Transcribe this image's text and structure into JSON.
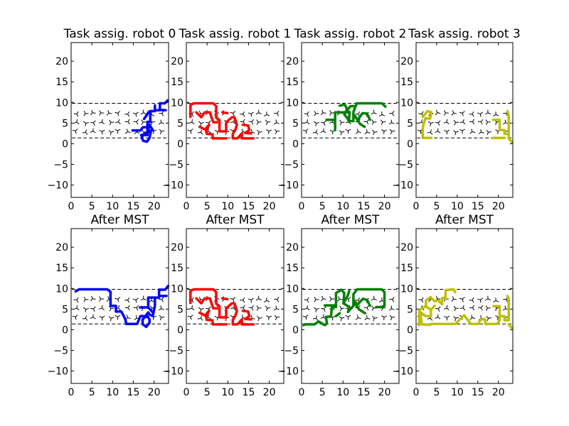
{
  "figure": {
    "background": "#ffffff"
  },
  "chart_data": [
    {
      "type": "line",
      "title": "Task assig. robot 0",
      "xlim": [
        0,
        23.5
      ],
      "ylim": [
        -13,
        24.5
      ],
      "xticks": [
        0,
        5,
        10,
        15,
        20
      ],
      "yticks": [
        -10,
        -5,
        0,
        5,
        10,
        15,
        20
      ],
      "grid": false,
      "color": "#0000ff",
      "series": [
        {
          "x": [
            14.8,
            16.7,
            17.3,
            18.7,
            18.7,
            17.5,
            17,
            17.4,
            18.3,
            18.9,
            19.3,
            19.7,
            18.9
          ],
          "y": [
            3.2,
            3.2,
            4,
            4,
            2.8,
            2.3,
            1.5,
            0.7,
            0.5,
            1.4,
            3.2,
            3.3,
            4.6
          ]
        },
        {
          "x": [
            16.9,
            18.4,
            18.4,
            19.1,
            19.1,
            20.2,
            20.2
          ],
          "y": [
            2.1,
            2.1,
            5.3,
            5.3,
            7.9,
            7.9,
            9.3
          ]
        },
        {
          "x": [
            20.2,
            21.4,
            21.4,
            22.6,
            23.3
          ],
          "y": [
            8.1,
            8.1,
            9.8,
            9.8,
            10.5
          ]
        },
        {
          "x": [
            17.6,
            18.8
          ],
          "y": [
            6.0,
            7.8
          ]
        },
        {
          "x": [
            21.4,
            22.8
          ],
          "y": [
            8.2,
            8.1
          ]
        }
      ]
    },
    {
      "type": "line",
      "title": "Task assig. robot 1",
      "xlim": [
        0,
        23.5
      ],
      "ylim": [
        -13,
        24.5
      ],
      "xticks": [
        0,
        5,
        10,
        15,
        20
      ],
      "yticks": [
        -10,
        -5,
        0,
        5,
        10,
        15,
        20
      ],
      "grid": false,
      "color": "#ff0000",
      "series": [
        {
          "x": [
            1,
            1,
            1.8,
            6.5,
            7.2,
            7.2,
            8,
            8,
            9.6,
            9.6,
            11,
            11.6,
            12.2,
            11.8,
            11.2,
            11.2,
            12.3,
            13.4,
            13.4,
            16.2
          ],
          "y": [
            6.5,
            9.4,
            9.8,
            9.8,
            9.1,
            6.3,
            5.7,
            3,
            3,
            5.2,
            6.4,
            6.4,
            4.6,
            3.3,
            2.4,
            1.3,
            1.3,
            2.5,
            1.3,
            1.3
          ]
        },
        {
          "x": [
            2.4,
            3.6,
            4.4,
            5.7,
            6.1,
            6.5,
            7.3
          ],
          "y": [
            7.6,
            6.4,
            7.6,
            7.6,
            6.3,
            5.2,
            5.2
          ]
        },
        {
          "x": [
            3.2,
            4.8,
            5.5,
            4.7,
            4.9,
            6.3,
            6.4,
            7.8,
            9.6
          ],
          "y": [
            4.1,
            3.3,
            4.6,
            3.7,
            2.4,
            2.3,
            1.3,
            1.3,
            1.3
          ]
        },
        {
          "x": [
            13.6,
            14.9,
            15.2,
            14.2,
            15.6
          ],
          "y": [
            4.6,
            4.4,
            3.3,
            2.6,
            2.5
          ]
        },
        {
          "x": [
            8.7,
            9.9
          ],
          "y": [
            7.6,
            7.4
          ]
        }
      ]
    },
    {
      "type": "line",
      "title": "Task assig. robot 2",
      "xlim": [
        0,
        23.5
      ],
      "ylim": [
        -13,
        24.5
      ],
      "xticks": [
        0,
        5,
        10,
        15,
        20
      ],
      "yticks": [
        -10,
        -5,
        0,
        5,
        10,
        15,
        20
      ],
      "grid": false,
      "color": "#008000",
      "series": [
        {
          "x": [
            10.8,
            11.6,
            11.4,
            12.5,
            12.5,
            13.3,
            14.4,
            16.2,
            17.9,
            19.4,
            20.2
          ],
          "y": [
            8.2,
            7.6,
            5.5,
            5.5,
            7.7,
            9.8,
            9.8,
            9.8,
            9.8,
            9.8,
            9
          ]
        },
        {
          "x": [
            6,
            8.1,
            8.1,
            10.5,
            11.3,
            11.8,
            12.7
          ],
          "y": [
            5.8,
            5.8,
            7.6,
            7.6,
            8.5,
            9.1,
            9.1
          ]
        },
        {
          "x": [
            9.2,
            10.4,
            11.1,
            10.3,
            11,
            11.5
          ],
          "y": [
            9.2,
            9.5,
            8.2,
            7.1,
            6.3,
            5.3
          ]
        },
        {
          "x": [
            13.5,
            14.7,
            15.8,
            16.5
          ],
          "y": [
            5.7,
            7.4,
            7.3,
            5.8
          ]
        },
        {
          "x": [
            12.9,
            14.1,
            15.2
          ],
          "y": [
            6.7,
            4.8,
            4.1
          ]
        },
        {
          "x": [
            8.1,
            8.1
          ],
          "y": [
            5.8,
            3.3
          ]
        }
      ]
    },
    {
      "type": "line",
      "title": "Task assig. robot 3",
      "xlim": [
        0,
        23.5
      ],
      "ylim": [
        -13,
        24.5
      ],
      "xticks": [
        0,
        5,
        10,
        15,
        20
      ],
      "yticks": [
        -10,
        -5,
        0,
        5,
        10,
        15,
        20
      ],
      "grid": false,
      "color": "#bfbf00",
      "series": [
        {
          "x": [
            1.6,
            2.8,
            3.7,
            3.4,
            2.3,
            1.8,
            1.6,
            1.6,
            3.7
          ],
          "y": [
            6.5,
            7.9,
            7.6,
            6.1,
            6.2,
            4.7,
            3.6,
            1.4,
            1.4
          ]
        },
        {
          "x": [
            18.7,
            20.3,
            20.3,
            21.5,
            21.5,
            22.5,
            22.5,
            23.3
          ],
          "y": [
            5.8,
            5.8,
            3.3,
            3.3,
            2.4,
            2.3,
            1.3,
            0.4
          ]
        },
        {
          "x": [
            18.8,
            21.5
          ],
          "y": [
            1.4,
            1.4
          ]
        },
        {
          "x": [
            22.5,
            22.5,
            22.2
          ],
          "y": [
            2.3,
            6.8,
            7.9
          ]
        }
      ]
    },
    {
      "type": "line",
      "title": "After MST",
      "xlim": [
        0,
        23.5
      ],
      "ylim": [
        -13,
        24.5
      ],
      "xticks": [
        0,
        5,
        10,
        15,
        20
      ],
      "yticks": [
        -10,
        -5,
        0,
        5,
        10,
        15,
        20
      ],
      "grid": false,
      "color": "#0000ff",
      "series": [
        {
          "x": [
            1.1,
            1.9,
            8.7,
            9.5,
            9.5,
            10.8,
            10.8,
            12.1,
            12.7,
            13.1,
            13.3,
            13.8,
            15.9,
            16.3,
            16.7,
            18.4,
            18.9,
            18.9,
            18.1,
            17.3,
            17.2,
            17.9,
            18.6,
            18.9,
            19.7,
            20.2,
            20.2,
            21.2,
            21.2,
            22.7,
            23.4
          ],
          "y": [
            9.3,
            9.8,
            9.8,
            9.2,
            5.8,
            5.8,
            4.4,
            4.4,
            3.3,
            2.4,
            1.4,
            1.4,
            1.4,
            2.3,
            3.3,
            3.3,
            2.5,
            1.7,
            0.7,
            1.3,
            2.4,
            3.3,
            4.2,
            3.7,
            3.3,
            5.8,
            7.8,
            7.8,
            9.7,
            9.7,
            10.6
          ]
        },
        {
          "x": [
            16.6,
            18.6,
            18.6,
            20.2
          ],
          "y": [
            5.4,
            5.4,
            7.8,
            7.8
          ]
        },
        {
          "x": [
            18.6,
            19.7
          ],
          "y": [
            5.4,
            4.2
          ]
        },
        {
          "x": [
            21.2,
            23
          ],
          "y": [
            8.2,
            8.2
          ]
        }
      ]
    },
    {
      "type": "line",
      "title": "After MST",
      "xlim": [
        0,
        23.5
      ],
      "ylim": [
        -13,
        24.5
      ],
      "xticks": [
        0,
        5,
        10,
        15,
        20
      ],
      "yticks": [
        -10,
        -5,
        0,
        5,
        10,
        15,
        20
      ],
      "grid": false,
      "color": "#ff0000",
      "series": [
        {
          "x": [
            1,
            1,
            1.8,
            6.5,
            7.2,
            7.2,
            8,
            8,
            9.6,
            9.6,
            11,
            11.6,
            12.2,
            11.8,
            11.2,
            11.2,
            12.3,
            13.4,
            13.4,
            16.2
          ],
          "y": [
            6.5,
            9.4,
            9.8,
            9.8,
            9.1,
            6.3,
            5.7,
            3,
            3,
            5.2,
            6.4,
            6.4,
            4.6,
            3.3,
            2.4,
            1.3,
            1.3,
            2.5,
            1.3,
            1.3
          ]
        },
        {
          "x": [
            2.4,
            3.6,
            4.4,
            5.7,
            6.1,
            6.5,
            7.3
          ],
          "y": [
            7.6,
            6.4,
            7.6,
            7.6,
            6.3,
            5.2,
            5.2
          ]
        },
        {
          "x": [
            3.2,
            4.8,
            5.5,
            4.7,
            4.9,
            6.3,
            6.4,
            7.8,
            9.6
          ],
          "y": [
            4.1,
            3.3,
            4.6,
            3.7,
            2.4,
            2.3,
            1.3,
            1.3,
            1.3
          ]
        },
        {
          "x": [
            13.6,
            14.9,
            15.2,
            14.2,
            15.6
          ],
          "y": [
            4.6,
            4.4,
            3.3,
            2.6,
            2.5
          ]
        },
        {
          "x": [
            8.7,
            9.9
          ],
          "y": [
            7.6,
            7.4
          ]
        }
      ]
    },
    {
      "type": "line",
      "title": "After MST",
      "xlim": [
        0,
        23.5
      ],
      "ylim": [
        -13,
        24.5
      ],
      "xticks": [
        0,
        5,
        10,
        15,
        20
      ],
      "yticks": [
        -10,
        -5,
        0,
        5,
        10,
        15,
        20
      ],
      "grid": false,
      "color": "#008000",
      "series": [
        {
          "x": [
            0.5,
            0.8,
            3.1,
            4.1,
            5.6,
            6.1,
            5.9,
            7.1,
            7.3,
            8.3,
            8.3,
            9.6,
            10.3,
            10.1,
            11.5,
            11.2,
            12.5,
            12.5,
            13.4,
            16.3,
            19.3,
            20,
            20,
            19.2,
            18
          ],
          "y": [
            1.1,
            1.3,
            1.3,
            2,
            1.1,
            1.5,
            3.1,
            3.2,
            5.5,
            5.5,
            8.9,
            9.7,
            8.9,
            6.4,
            5.5,
            4.3,
            5.8,
            8.6,
            9.8,
            9.8,
            9.8,
            9.1,
            5.8,
            5.5,
            5.5
          ]
        },
        {
          "x": [
            5.6,
            8.3
          ],
          "y": [
            5.9,
            5.9
          ]
        },
        {
          "x": [
            10.1,
            11.1,
            11.5
          ],
          "y": [
            6.4,
            8.2,
            9.4
          ]
        },
        {
          "x": [
            12.5,
            13.5,
            14.8,
            15.8,
            16.5
          ],
          "y": [
            7.2,
            6.1,
            7.5,
            7.2,
            5.8
          ]
        },
        {
          "x": [
            12.6,
            13.9,
            15.3
          ],
          "y": [
            6.6,
            4.9,
            4.0
          ]
        },
        {
          "x": [
            8.3,
            9.2
          ],
          "y": [
            3.3,
            4.0
          ]
        }
      ]
    },
    {
      "type": "line",
      "title": "After MST",
      "xlim": [
        0,
        23.5
      ],
      "ylim": [
        -13,
        24.5
      ],
      "xticks": [
        0,
        5,
        10,
        15,
        20
      ],
      "yticks": [
        -10,
        -5,
        0,
        5,
        10,
        15,
        20
      ],
      "grid": false,
      "color": "#bfbf00",
      "series": [
        {
          "x": [
            0.8,
            0.8,
            2.4,
            3.6,
            3.6,
            2.3,
            1,
            1.4,
            3.3,
            3.7,
            7.5,
            9.6,
            10.8,
            11.7,
            13.3,
            14,
            15.1,
            15.7,
            16.7,
            16.9,
            17.9,
            18.7,
            18.7,
            19.7,
            20.3,
            20.3,
            21.5,
            21.5,
            22.5,
            22.5,
            22.2
          ],
          "y": [
            1.1,
            4.8,
            5.7,
            4.8,
            3.3,
            3.3,
            4.3,
            1.3,
            1.2,
            1.4,
            1.4,
            1.4,
            2.7,
            3.5,
            1.4,
            1.4,
            1.4,
            2.5,
            2.6,
            1.4,
            1.4,
            1.4,
            1.4,
            1.4,
            2.3,
            3.3,
            3.3,
            2.3,
            2.3,
            7.6,
            8.2
          ]
        },
        {
          "x": [
            2.4,
            2.4,
            3.5,
            4.5,
            5.3,
            6.3,
            6.3,
            7.1,
            7.2,
            8.2,
            9.1,
            9.5
          ],
          "y": [
            5.7,
            7.1,
            7.9,
            6.9,
            7.1,
            6.2,
            7.7,
            7.6,
            9.6,
            9.7,
            9.8,
            9.1
          ]
        },
        {
          "x": [
            3.6,
            4.5
          ],
          "y": [
            4.8,
            5.8
          ]
        },
        {
          "x": [
            18.8,
            20.3,
            20.3
          ],
          "y": [
            5.7,
            5.7,
            3.3
          ]
        },
        {
          "x": [
            22.5,
            23.3
          ],
          "y": [
            1.3,
            0.4
          ]
        }
      ]
    }
  ],
  "panels": [
    {
      "title": "Task assig. robot 0"
    },
    {
      "title": "Task assig. robot 1"
    },
    {
      "title": "Task assig. robot 2"
    },
    {
      "title": "Task assig. robot 3"
    },
    {
      "title": "After MST"
    },
    {
      "title": "After MST"
    },
    {
      "title": "After MST"
    },
    {
      "title": "After MST"
    }
  ]
}
